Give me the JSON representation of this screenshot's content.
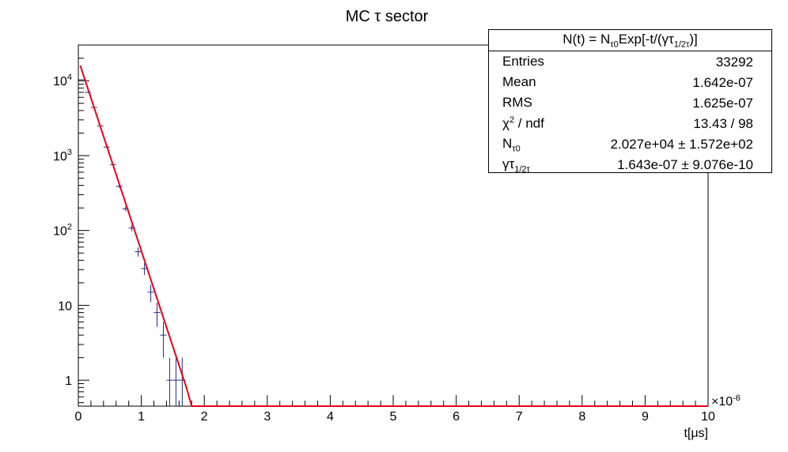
{
  "chart_data": {
    "type": "line",
    "title": "MC τ sector",
    "xlabel": "t[μs]",
    "x_exponent_label": "×10",
    "x_exponent_power": "-6",
    "xlim": [
      0,
      10
    ],
    "x_major_ticks": [
      0,
      1,
      2,
      3,
      4,
      5,
      6,
      7,
      8,
      9,
      10
    ],
    "x_tick_labels": [
      "0",
      "1",
      "2",
      "3",
      "4",
      "5",
      "6",
      "7",
      "8",
      "9",
      "10"
    ],
    "yscale": "log",
    "ylim": [
      0.45,
      30000
    ],
    "y_ticks": [
      {
        "value": 10000,
        "base": "10",
        "exp": "4"
      },
      {
        "value": 1000,
        "base": "10",
        "exp": "3"
      },
      {
        "value": 100,
        "base": "10",
        "exp": "2"
      },
      {
        "value": 10,
        "base": "10",
        "exp": ""
      },
      {
        "value": 1,
        "base": "1",
        "exp": ""
      }
    ],
    "series": [
      {
        "kind": "histogram",
        "color": "#1f2d86",
        "x": [
          0.05,
          0.15,
          0.25,
          0.35,
          0.45,
          0.55,
          0.65,
          0.75,
          0.85,
          0.95,
          1.05,
          1.15,
          1.25,
          1.35,
          1.45,
          1.55,
          1.65
        ],
        "values": [
          10300,
          7000,
          4400,
          2500,
          1300,
          760,
          390,
          195,
          108,
          52,
          31,
          15,
          8,
          4,
          1,
          1,
          1
        ]
      },
      {
        "kind": "fit",
        "color": "#e8001a",
        "x": [
          0.03,
          1.72,
          1.8,
          10.0
        ],
        "values": [
          16000,
          0.78,
          0.45,
          0.45
        ]
      }
    ],
    "grid": false,
    "legend": "top-right"
  },
  "stats": {
    "title_prefix": "N(t) = N",
    "title_sub1": "τ0",
    "title_mid": "Exp[-t/(γτ",
    "title_sub2": "1/2τ",
    "title_suffix": ")]",
    "entries_label": "Entries",
    "entries_value": "33292",
    "mean_label": "Mean",
    "mean_value": "1.642e-07",
    "rms_label": "RMS",
    "rms_value": "1.625e-07",
    "chi_symbol": "χ",
    "chi_power": "2",
    "chi_rest": " / ndf",
    "chi_value": "13.43 / 98",
    "n_label": "N",
    "n_sub": "τ0",
    "n_value": "2.027e+04  ± 1.572e+02",
    "g_label": "γτ",
    "g_sub": "1/2τ",
    "g_value": "1.643e-07  ± 9.076e-10"
  }
}
